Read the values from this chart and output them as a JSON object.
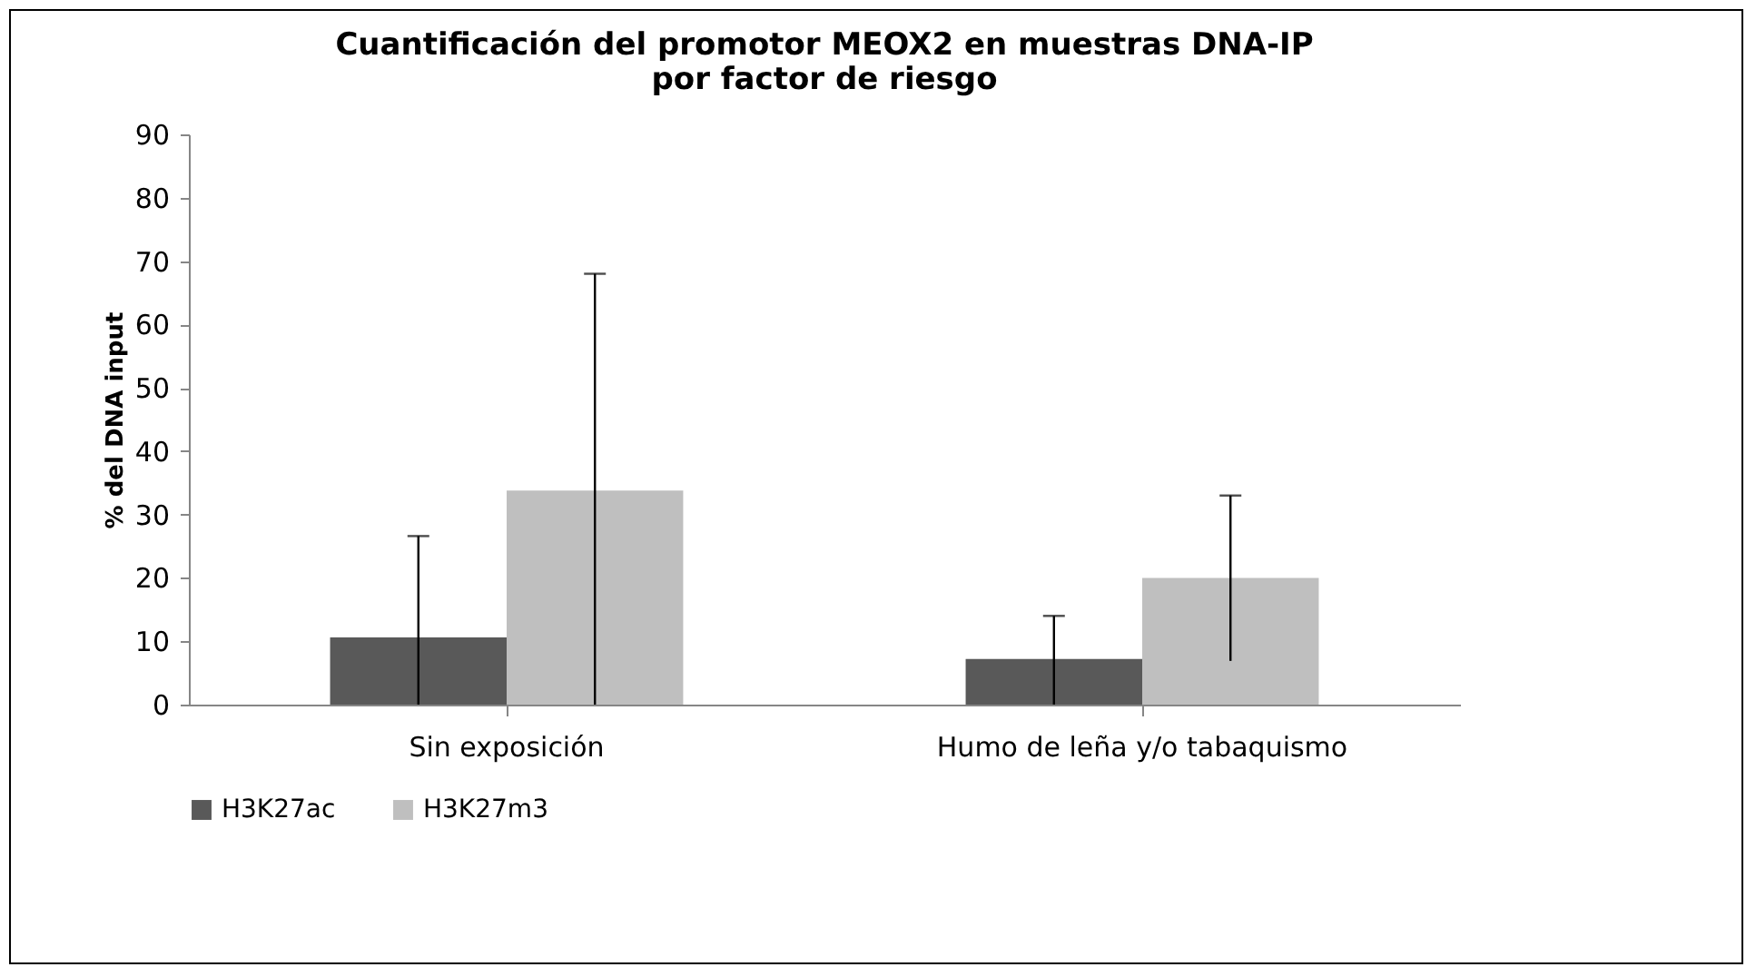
{
  "chart_data": {
    "type": "bar",
    "title": "Cuantificación  del promotor MEOX2 en muestras DNA-IP\npor factor de riesgo",
    "ylabel": "% del DNA input",
    "categories": [
      "Sin exposición",
      "Humo de leña y/o tabaquismo"
    ],
    "series": [
      {
        "name": "H3K27ac",
        "color": "#595959",
        "values": [
          10.6,
          7.2
        ],
        "errors": [
          [
            0,
            26.6
          ],
          [
            0,
            14
          ]
        ]
      },
      {
        "name": "H3K27m3",
        "color": "#bfbfbf",
        "values": [
          33.8,
          20
        ],
        "errors": [
          [
            0,
            68
          ],
          [
            6.9,
            33
          ]
        ]
      }
    ],
    "ylim": [
      0,
      90
    ],
    "yticks": [
      0,
      10,
      20,
      30,
      40,
      50,
      60,
      70,
      80,
      90
    ],
    "grid": false,
    "legend": "bottom"
  }
}
